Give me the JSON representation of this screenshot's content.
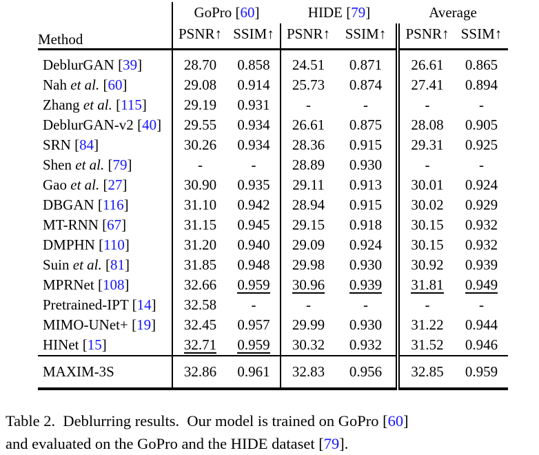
{
  "colors": {
    "ref_blue": "#1414ff",
    "text": "#000000",
    "background": "#ffffff",
    "rule": "#000000"
  },
  "table": {
    "method_header": "Method",
    "metric_headers": [
      "PSNR↑",
      "SSIM↑"
    ],
    "col_groups": [
      {
        "label": "GoPro",
        "ref": "60"
      },
      {
        "label": "HIDE",
        "ref": "79"
      },
      {
        "label": "Average",
        "ref": null
      }
    ],
    "rows": [
      {
        "method": {
          "name": "DeblurGAN",
          "etal": false,
          "ref": "39"
        },
        "cells": [
          {
            "v": "28.70"
          },
          {
            "v": "0.858"
          },
          {
            "v": "24.51"
          },
          {
            "v": "0.871"
          },
          {
            "v": "26.61"
          },
          {
            "v": "0.865"
          }
        ]
      },
      {
        "method": {
          "name": "Nah",
          "etal": true,
          "ref": "60"
        },
        "cells": [
          {
            "v": "29.08"
          },
          {
            "v": "0.914"
          },
          {
            "v": "25.73"
          },
          {
            "v": "0.874"
          },
          {
            "v": "27.41"
          },
          {
            "v": "0.894"
          }
        ]
      },
      {
        "method": {
          "name": "Zhang",
          "etal": true,
          "ref": "115"
        },
        "cells": [
          {
            "v": "29.19"
          },
          {
            "v": "0.931"
          },
          {
            "v": "-"
          },
          {
            "v": "-"
          },
          {
            "v": "-"
          },
          {
            "v": "-"
          }
        ]
      },
      {
        "method": {
          "name": "DeblurGAN-v2",
          "etal": false,
          "ref": "40"
        },
        "cells": [
          {
            "v": "29.55"
          },
          {
            "v": "0.934"
          },
          {
            "v": "26.61"
          },
          {
            "v": "0.875"
          },
          {
            "v": "28.08"
          },
          {
            "v": "0.905"
          }
        ]
      },
      {
        "method": {
          "name": "SRN",
          "etal": false,
          "ref": "84"
        },
        "cells": [
          {
            "v": "30.26"
          },
          {
            "v": "0.934"
          },
          {
            "v": "28.36"
          },
          {
            "v": "0.915"
          },
          {
            "v": "29.31"
          },
          {
            "v": "0.925"
          }
        ]
      },
      {
        "method": {
          "name": "Shen",
          "etal": true,
          "ref": "79"
        },
        "cells": [
          {
            "v": "-"
          },
          {
            "v": "-"
          },
          {
            "v": "28.89"
          },
          {
            "v": "0.930"
          },
          {
            "v": "-"
          },
          {
            "v": "-"
          }
        ]
      },
      {
        "method": {
          "name": "Gao",
          "etal": true,
          "ref": "27"
        },
        "cells": [
          {
            "v": "30.90"
          },
          {
            "v": "0.935"
          },
          {
            "v": "29.11"
          },
          {
            "v": "0.913"
          },
          {
            "v": "30.01"
          },
          {
            "v": "0.924"
          }
        ]
      },
      {
        "method": {
          "name": "DBGAN",
          "etal": false,
          "ref": "116"
        },
        "cells": [
          {
            "v": "31.10"
          },
          {
            "v": "0.942"
          },
          {
            "v": "28.94"
          },
          {
            "v": "0.915"
          },
          {
            "v": "30.02"
          },
          {
            "v": "0.929"
          }
        ]
      },
      {
        "method": {
          "name": "MT-RNN",
          "etal": false,
          "ref": "67"
        },
        "cells": [
          {
            "v": "31.15"
          },
          {
            "v": "0.945"
          },
          {
            "v": "29.15"
          },
          {
            "v": "0.918"
          },
          {
            "v": "30.15"
          },
          {
            "v": "0.932"
          }
        ]
      },
      {
        "method": {
          "name": "DMPHN",
          "etal": false,
          "ref": "110"
        },
        "cells": [
          {
            "v": "31.20"
          },
          {
            "v": "0.940"
          },
          {
            "v": "29.09"
          },
          {
            "v": "0.924"
          },
          {
            "v": "30.15"
          },
          {
            "v": "0.932"
          }
        ]
      },
      {
        "method": {
          "name": "Suin",
          "etal": true,
          "ref": "81"
        },
        "cells": [
          {
            "v": "31.85"
          },
          {
            "v": "0.948"
          },
          {
            "v": "29.98"
          },
          {
            "v": "0.930"
          },
          {
            "v": "30.92"
          },
          {
            "v": "0.939"
          }
        ]
      },
      {
        "method": {
          "name": "MPRNet",
          "etal": false,
          "ref": "108"
        },
        "cells": [
          {
            "v": "32.66"
          },
          {
            "v": "0.959",
            "u": true
          },
          {
            "v": "30.96",
            "u": true
          },
          {
            "v": "0.939",
            "u": true
          },
          {
            "v": "31.81",
            "u": true
          },
          {
            "v": "0.949",
            "u": true
          }
        ]
      },
      {
        "method": {
          "name": "Pretrained-IPT",
          "etal": false,
          "ref": "14"
        },
        "cells": [
          {
            "v": "32.58"
          },
          {
            "v": "-"
          },
          {
            "v": "-"
          },
          {
            "v": "-"
          },
          {
            "v": "-"
          },
          {
            "v": "-"
          }
        ]
      },
      {
        "method": {
          "name": "MIMO-UNet+",
          "etal": false,
          "ref": "19"
        },
        "cells": [
          {
            "v": "32.45"
          },
          {
            "v": "0.957"
          },
          {
            "v": "29.99"
          },
          {
            "v": "0.930"
          },
          {
            "v": "31.22"
          },
          {
            "v": "0.944"
          }
        ]
      },
      {
        "method": {
          "name": "HINet",
          "etal": false,
          "ref": "15"
        },
        "cells": [
          {
            "v": "32.71",
            "u": true
          },
          {
            "v": "0.959",
            "u": true
          },
          {
            "v": "30.32"
          },
          {
            "v": "0.932"
          },
          {
            "v": "31.52"
          },
          {
            "v": "0.946"
          }
        ]
      }
    ],
    "final_row": {
      "method": {
        "name": "MAXIM-3S",
        "etal": false,
        "ref": null
      },
      "cells": [
        {
          "v": "32.86"
        },
        {
          "v": "0.961"
        },
        {
          "v": "32.83"
        },
        {
          "v": "0.956"
        },
        {
          "v": "32.85"
        },
        {
          "v": "0.959"
        }
      ]
    }
  },
  "caption": {
    "segments": [
      {
        "t": "Table 2.  Deblurring results.  Our model is trained on GoPro ["
      },
      {
        "t": "60",
        "blue": true
      },
      {
        "t": "]"
      },
      {
        "br": true
      },
      {
        "t": "and evaluated on the GoPro and the HIDE dataset ["
      },
      {
        "t": "79",
        "blue": true
      },
      {
        "t": "]."
      }
    ]
  }
}
